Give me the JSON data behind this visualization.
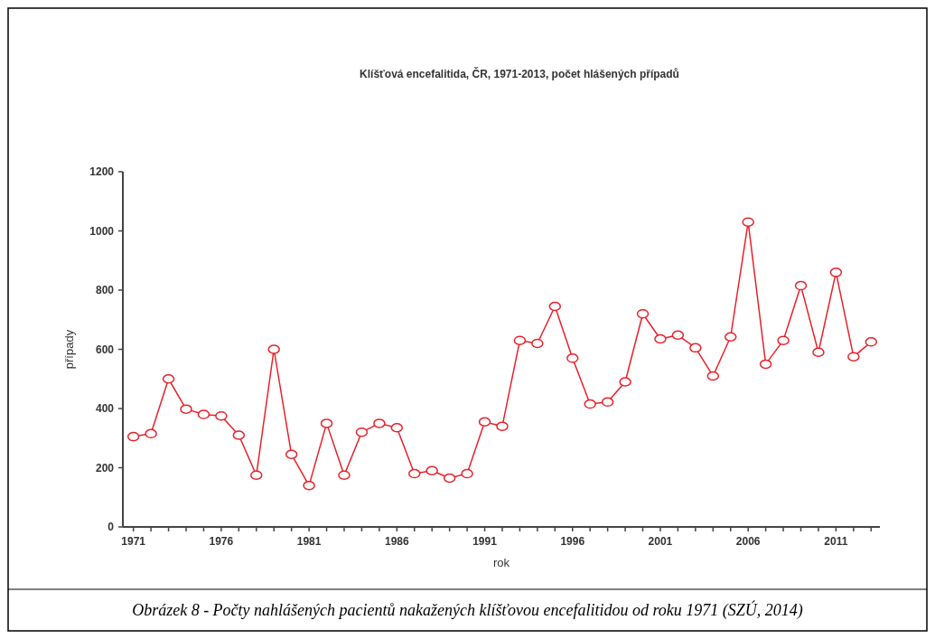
{
  "chart_data": {
    "type": "line",
    "title": "Klíšťová encefalitida, ČR, 1971-2013, počet hlášených případů",
    "xlabel": "rok",
    "ylabel": "případy",
    "annotations": [
      "Obrázek 8 - Počty nahlášených pacientů nakažených klíšťovou encefalitidou od roku 1971 (SZÚ, 2014)"
    ],
    "x": [
      1971,
      1972,
      1973,
      1974,
      1975,
      1976,
      1977,
      1978,
      1979,
      1980,
      1981,
      1982,
      1983,
      1984,
      1985,
      1986,
      1987,
      1988,
      1989,
      1990,
      1991,
      1992,
      1993,
      1994,
      1995,
      1996,
      1997,
      1998,
      1999,
      2000,
      2001,
      2002,
      2003,
      2004,
      2005,
      2006,
      2007,
      2008,
      2009,
      2010,
      2011,
      2012,
      2013
    ],
    "series": [
      {
        "color": "#e8202a",
        "values": [
          305,
          315,
          500,
          398,
          380,
          375,
          310,
          175,
          600,
          245,
          140,
          350,
          175,
          320,
          350,
          335,
          180,
          190,
          165,
          180,
          355,
          340,
          630,
          620,
          745,
          570,
          415,
          422,
          490,
          720,
          635,
          648,
          605,
          510,
          642,
          1030,
          550,
          630,
          815,
          590,
          860,
          575,
          625
        ]
      }
    ],
    "xlim": [
      1970.4,
      2013.5
    ],
    "xticks": [
      1971,
      {
        "value": 1972,
        "label": null
      },
      {
        "value": 1973,
        "label": null
      },
      {
        "value": 1974,
        "label": null
      },
      {
        "value": 1975,
        "label": null
      },
      1976,
      {
        "value": 1977,
        "label": null
      },
      {
        "value": 1978,
        "label": null
      },
      {
        "value": 1979,
        "label": null
      },
      {
        "value": 1980,
        "label": null
      },
      1981,
      {
        "value": 1982,
        "label": null
      },
      {
        "value": 1983,
        "label": null
      },
      {
        "value": 1984,
        "label": null
      },
      {
        "value": 1985,
        "label": null
      },
      1986,
      {
        "value": 1987,
        "label": null
      },
      {
        "value": 1988,
        "label": null
      },
      {
        "value": 1989,
        "label": null
      },
      {
        "value": 1990,
        "label": null
      },
      1991,
      {
        "value": 1992,
        "label": null
      },
      {
        "value": 1993,
        "label": null
      },
      {
        "value": 1994,
        "label": null
      },
      {
        "value": 1995,
        "label": null
      },
      1996,
      {
        "value": 1997,
        "label": null
      },
      {
        "value": 1998,
        "label": null
      },
      {
        "value": 1999,
        "label": null
      },
      {
        "value": 2000,
        "label": null
      },
      2001,
      {
        "value": 2002,
        "label": null
      },
      {
        "value": 2003,
        "label": null
      },
      {
        "value": 2004,
        "label": null
      },
      {
        "value": 2005,
        "label": null
      },
      2006,
      {
        "value": 2007,
        "label": null
      },
      {
        "value": 2008,
        "label": null
      },
      {
        "value": 2009,
        "label": null
      },
      {
        "value": 2010,
        "label": null
      },
      2011,
      {
        "value": 2012,
        "label": null
      },
      {
        "value": 2013,
        "label": null
      }
    ],
    "ylim": [
      0,
      1200
    ],
    "yticks": [
      0,
      200,
      400,
      600,
      800,
      1000,
      1200
    ],
    "marker": "circle",
    "line_style": "solid"
  }
}
